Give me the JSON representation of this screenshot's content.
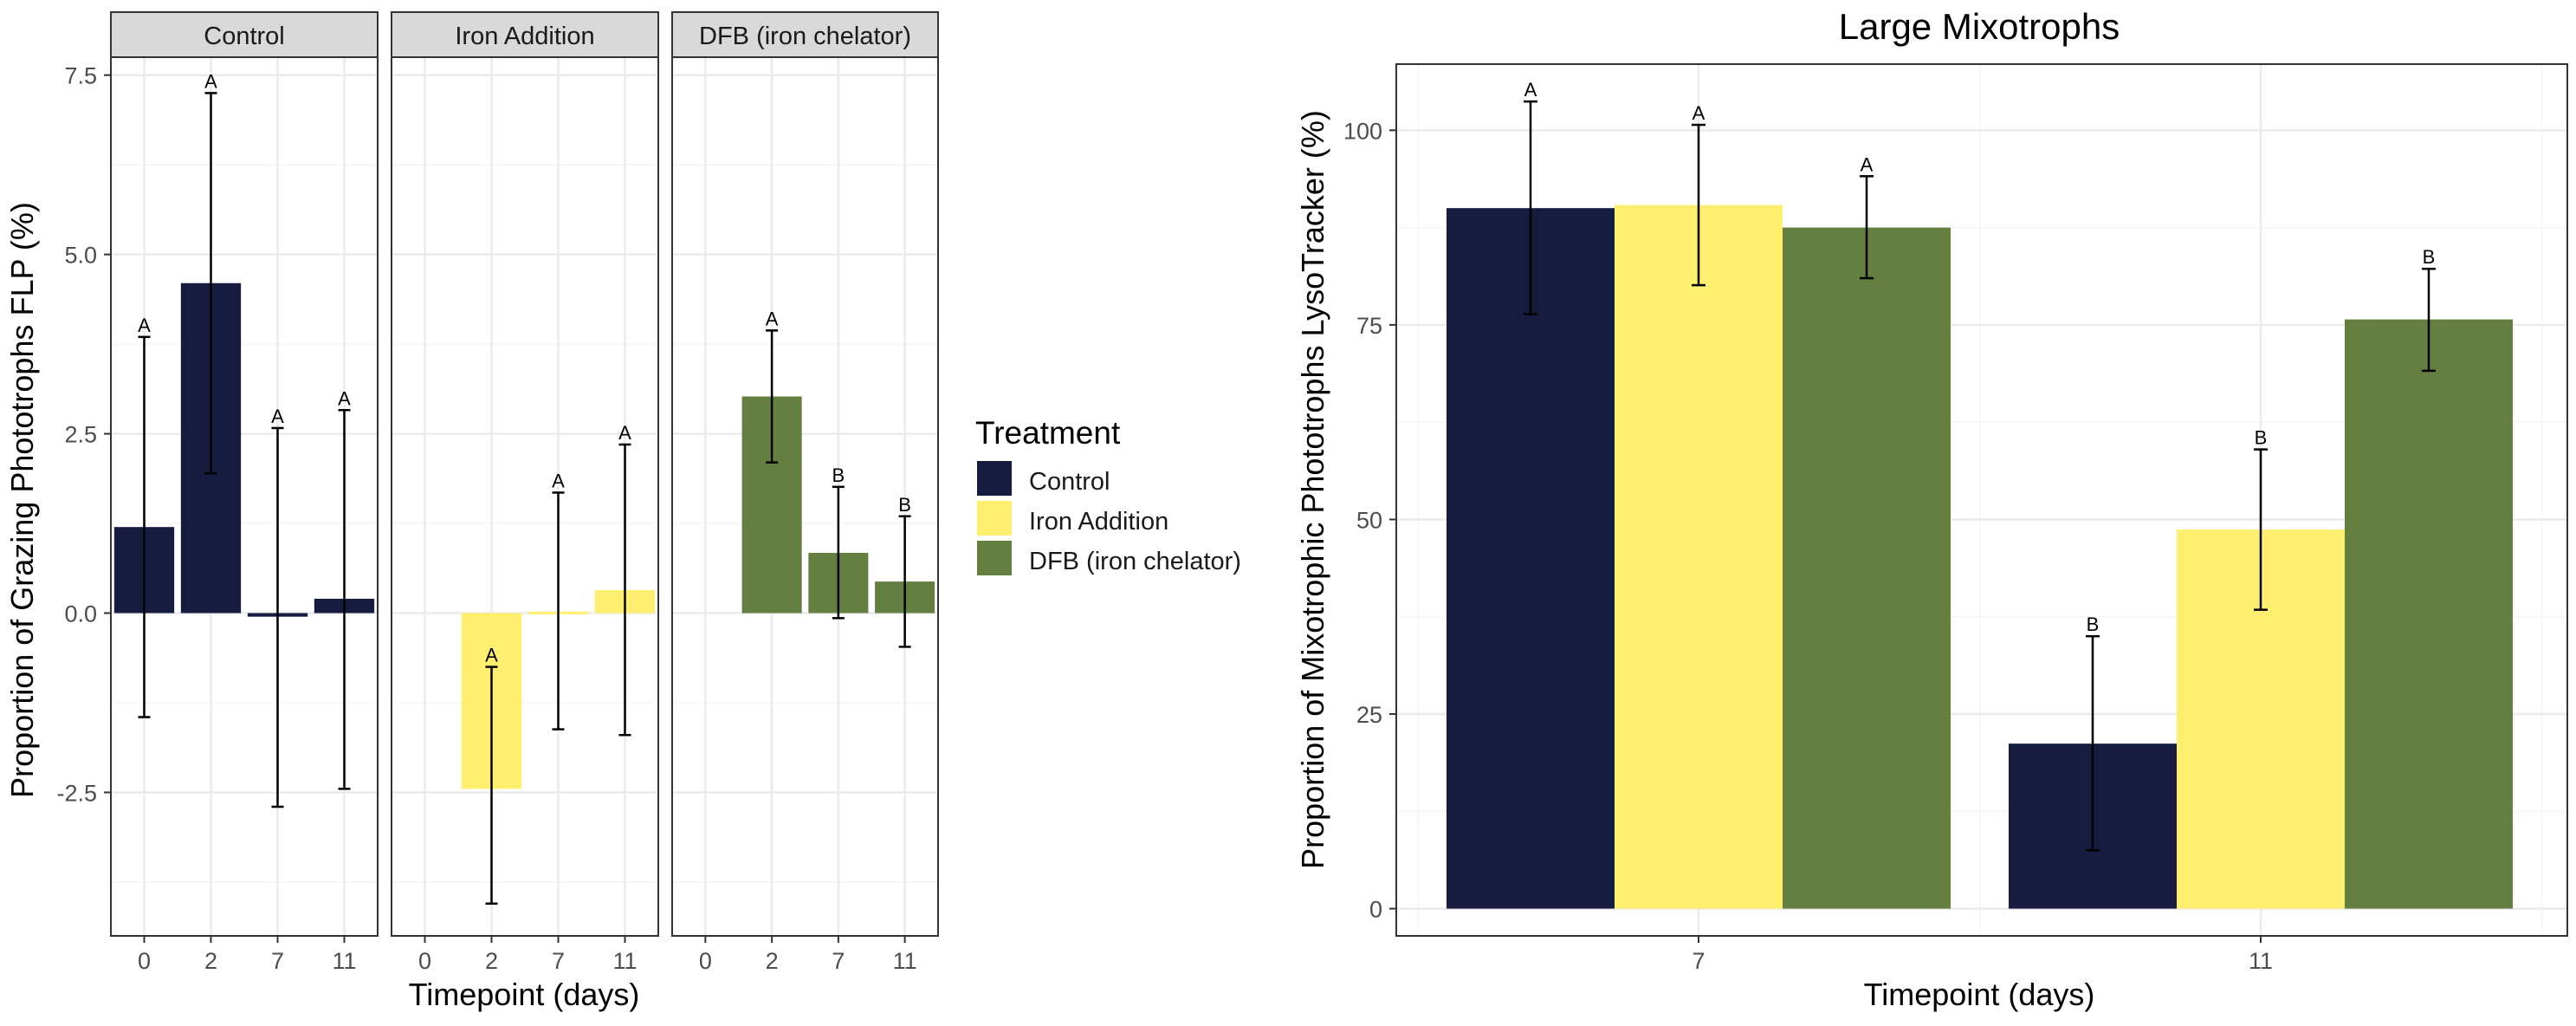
{
  "colors": {
    "control": "#161C3F",
    "iron": "#FFEF6E",
    "dfb": "#647F3F",
    "strip_bg": "#D9D9D9",
    "grid_major": "#EBEBEB",
    "grid_minor": "#F5F5F5",
    "border": "#333333"
  },
  "legend": {
    "title": "Treatment",
    "items": [
      {
        "label": "Control",
        "color_key": "control"
      },
      {
        "label": "Iron Addition",
        "color_key": "iron"
      },
      {
        "label": "DFB (iron chelator)",
        "color_key": "dfb"
      }
    ]
  },
  "chart_data": [
    {
      "type": "bar",
      "facet_by": "Treatment",
      "xlabel": "Timepoint (days)",
      "ylabel": "Proportion of Grazing Phototrophs FLP (%)",
      "ylim": [
        -4.5,
        7.75
      ],
      "yticks": [
        "-2.5",
        "0.0",
        "2.5",
        "5.0",
        "7.5"
      ],
      "grid": true,
      "categories": [
        "0",
        "2",
        "7",
        "11"
      ],
      "panels": [
        {
          "name": "Control",
          "color_key": "control",
          "values": [
            1.2,
            4.6,
            -0.05,
            0.2
          ],
          "err_low": [
            -1.45,
            1.95,
            -2.7,
            -2.45
          ],
          "err_high": [
            3.85,
            7.25,
            2.58,
            2.83
          ],
          "letters": [
            "A",
            "A",
            "A",
            "A"
          ]
        },
        {
          "name": "Iron Addition",
          "color_key": "iron",
          "values": [
            null,
            -2.45,
            0.02,
            0.32
          ],
          "err_low": [
            null,
            -4.05,
            -1.62,
            -1.7
          ],
          "err_high": [
            null,
            -0.75,
            1.68,
            2.35
          ],
          "letters": [
            "",
            "A",
            "A",
            "A"
          ]
        },
        {
          "name": "DFB (iron chelator)",
          "color_key": "dfb",
          "values": [
            null,
            3.02,
            0.84,
            0.44
          ],
          "err_low": [
            null,
            2.1,
            -0.07,
            -0.47
          ],
          "err_high": [
            null,
            3.94,
            1.76,
            1.35
          ],
          "letters": [
            "",
            "A",
            "B",
            "B"
          ]
        }
      ]
    },
    {
      "type": "bar",
      "title": "Large Mixotrophs",
      "xlabel": "Timepoint (days)",
      "ylabel": "Proportion of Mixotrophic Phototrophs LysoTracker (%)",
      "ylim": [
        -3.5,
        108.5
      ],
      "yticks": [
        "0",
        "25",
        "50",
        "75",
        "100"
      ],
      "grid": true,
      "categories": [
        "7",
        "11"
      ],
      "series": [
        {
          "name": "Control",
          "color_key": "control",
          "values": [
            90,
            21.2
          ],
          "err_low": [
            76.4,
            7.5
          ],
          "err_high": [
            103.7,
            35
          ],
          "letters": [
            "A",
            "B"
          ]
        },
        {
          "name": "Iron Addition",
          "color_key": "iron",
          "values": [
            90.4,
            48.7
          ],
          "err_low": [
            80.1,
            38.4
          ],
          "err_high": [
            100.7,
            59
          ],
          "letters": [
            "A",
            "B"
          ]
        },
        {
          "name": "DFB (iron chelator)",
          "color_key": "dfb",
          "values": [
            87.5,
            75.7
          ],
          "err_low": [
            81,
            69.1
          ],
          "err_high": [
            94.1,
            82.2
          ],
          "letters": [
            "A",
            "B"
          ]
        }
      ]
    }
  ]
}
